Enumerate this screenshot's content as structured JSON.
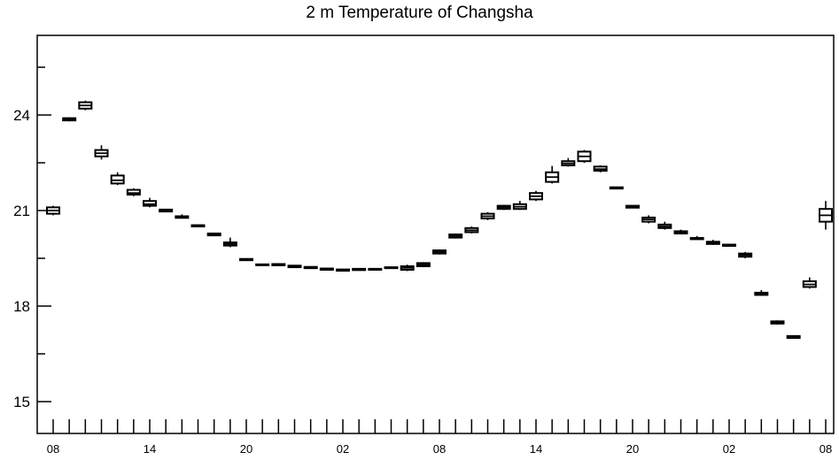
{
  "chart_data": {
    "type": "boxplot",
    "title": "2 m Temperature of Changsha",
    "xlabel": "",
    "ylabel": "",
    "x_range": [
      0,
      49
    ],
    "ylim": [
      14,
      26.5
    ],
    "y_ticks": [
      15,
      18,
      21,
      24
    ],
    "x_tick_labels": [
      {
        "x": 1,
        "label": "08"
      },
      {
        "x": 7,
        "label": "14"
      },
      {
        "x": 13,
        "label": "20"
      },
      {
        "x": 19,
        "label": "02"
      },
      {
        "x": 25,
        "label": "08"
      },
      {
        "x": 31,
        "label": "14"
      },
      {
        "x": 37,
        "label": "20"
      },
      {
        "x": 43,
        "label": "02"
      },
      {
        "x": 49,
        "label": "08"
      }
    ],
    "boxes": [
      {
        "x": 1,
        "min": 20.85,
        "q1": 20.9,
        "median": 21.0,
        "q3": 21.1,
        "max": 21.15
      },
      {
        "x": 2,
        "min": 23.8,
        "q1": 23.83,
        "median": 23.87,
        "q3": 23.9,
        "max": 23.93
      },
      {
        "x": 3,
        "min": 24.15,
        "q1": 24.2,
        "median": 24.3,
        "q3": 24.4,
        "max": 24.45
      },
      {
        "x": 4,
        "min": 22.6,
        "q1": 22.7,
        "median": 22.8,
        "q3": 22.9,
        "max": 23.05
      },
      {
        "x": 5,
        "min": 21.8,
        "q1": 21.85,
        "median": 21.95,
        "q3": 22.1,
        "max": 22.2
      },
      {
        "x": 6,
        "min": 21.45,
        "q1": 21.5,
        "median": 21.55,
        "q3": 21.65,
        "max": 21.7
      },
      {
        "x": 7,
        "min": 21.1,
        "q1": 21.15,
        "median": 21.2,
        "q3": 21.3,
        "max": 21.4
      },
      {
        "x": 8,
        "min": 20.95,
        "q1": 20.97,
        "median": 21.0,
        "q3": 21.03,
        "max": 21.05
      },
      {
        "x": 9,
        "min": 20.75,
        "q1": 20.77,
        "median": 20.8,
        "q3": 20.82,
        "max": 20.88
      },
      {
        "x": 10,
        "min": 20.48,
        "q1": 20.5,
        "median": 20.52,
        "q3": 20.54,
        "max": 20.56
      },
      {
        "x": 11,
        "min": 20.2,
        "q1": 20.22,
        "median": 20.25,
        "q3": 20.28,
        "max": 20.3
      },
      {
        "x": 12,
        "min": 19.85,
        "q1": 19.9,
        "median": 19.95,
        "q3": 20.0,
        "max": 20.15
      },
      {
        "x": 13,
        "min": 19.42,
        "q1": 19.44,
        "median": 19.46,
        "q3": 19.48,
        "max": 19.5
      },
      {
        "x": 14,
        "min": 19.27,
        "q1": 19.29,
        "median": 19.3,
        "q3": 19.31,
        "max": 19.33
      },
      {
        "x": 15,
        "min": 19.26,
        "q1": 19.28,
        "median": 19.3,
        "q3": 19.32,
        "max": 19.33
      },
      {
        "x": 16,
        "min": 19.2,
        "q1": 19.22,
        "median": 19.24,
        "q3": 19.27,
        "max": 19.29
      },
      {
        "x": 17,
        "min": 19.17,
        "q1": 19.19,
        "median": 19.21,
        "q3": 19.23,
        "max": 19.25
      },
      {
        "x": 18,
        "min": 19.12,
        "q1": 19.14,
        "median": 19.16,
        "q3": 19.18,
        "max": 19.2
      },
      {
        "x": 19,
        "min": 19.09,
        "q1": 19.11,
        "median": 19.13,
        "q3": 19.15,
        "max": 19.17
      },
      {
        "x": 20,
        "min": 19.11,
        "q1": 19.13,
        "median": 19.15,
        "q3": 19.17,
        "max": 19.19
      },
      {
        "x": 21,
        "min": 19.13,
        "q1": 19.14,
        "median": 19.16,
        "q3": 19.17,
        "max": 19.18
      },
      {
        "x": 22,
        "min": 19.18,
        "q1": 19.19,
        "median": 19.21,
        "q3": 19.22,
        "max": 19.24
      },
      {
        "x": 23,
        "min": 19.1,
        "q1": 19.14,
        "median": 19.2,
        "q3": 19.25,
        "max": 19.3
      },
      {
        "x": 24,
        "min": 19.22,
        "q1": 19.25,
        "median": 19.3,
        "q3": 19.35,
        "max": 19.38
      },
      {
        "x": 25,
        "min": 19.62,
        "q1": 19.65,
        "median": 19.7,
        "q3": 19.75,
        "max": 19.78
      },
      {
        "x": 26,
        "min": 20.12,
        "q1": 20.15,
        "median": 20.2,
        "q3": 20.25,
        "max": 20.28
      },
      {
        "x": 27,
        "min": 20.28,
        "q1": 20.32,
        "median": 20.38,
        "q3": 20.45,
        "max": 20.5
      },
      {
        "x": 28,
        "min": 20.7,
        "q1": 20.75,
        "median": 20.82,
        "q3": 20.9,
        "max": 20.95
      },
      {
        "x": 29,
        "min": 21.02,
        "q1": 21.05,
        "median": 21.1,
        "q3": 21.15,
        "max": 21.18
      },
      {
        "x": 30,
        "min": 21.02,
        "q1": 21.05,
        "median": 21.12,
        "q3": 21.2,
        "max": 21.3
      },
      {
        "x": 31,
        "min": 21.3,
        "q1": 21.35,
        "median": 21.45,
        "q3": 21.55,
        "max": 21.62
      },
      {
        "x": 32,
        "min": 21.85,
        "q1": 21.9,
        "median": 22.05,
        "q3": 22.2,
        "max": 22.4
      },
      {
        "x": 33,
        "min": 22.38,
        "q1": 22.42,
        "median": 22.48,
        "q3": 22.55,
        "max": 22.65
      },
      {
        "x": 34,
        "min": 22.5,
        "q1": 22.55,
        "median": 22.7,
        "q3": 22.85,
        "max": 22.9
      },
      {
        "x": 35,
        "min": 22.2,
        "q1": 22.25,
        "median": 22.3,
        "q3": 22.38,
        "max": 22.42
      },
      {
        "x": 36,
        "min": 21.67,
        "q1": 21.69,
        "median": 21.71,
        "q3": 21.73,
        "max": 21.75
      },
      {
        "x": 37,
        "min": 21.07,
        "q1": 21.09,
        "median": 21.12,
        "q3": 21.15,
        "max": 21.17
      },
      {
        "x": 38,
        "min": 20.6,
        "q1": 20.65,
        "median": 20.72,
        "q3": 20.78,
        "max": 20.85
      },
      {
        "x": 39,
        "min": 20.4,
        "q1": 20.45,
        "median": 20.5,
        "q3": 20.56,
        "max": 20.65
      },
      {
        "x": 40,
        "min": 20.25,
        "q1": 20.28,
        "median": 20.32,
        "q3": 20.35,
        "max": 20.4
      },
      {
        "x": 41,
        "min": 20.08,
        "q1": 20.1,
        "median": 20.12,
        "q3": 20.14,
        "max": 20.2
      },
      {
        "x": 42,
        "min": 19.92,
        "q1": 19.95,
        "median": 19.98,
        "q3": 20.02,
        "max": 20.08
      },
      {
        "x": 43,
        "min": 19.87,
        "q1": 19.89,
        "median": 19.91,
        "q3": 19.93,
        "max": 19.95
      },
      {
        "x": 44,
        "min": 19.5,
        "q1": 19.55,
        "median": 19.6,
        "q3": 19.65,
        "max": 19.7
      },
      {
        "x": 45,
        "min": 18.32,
        "q1": 18.35,
        "median": 18.38,
        "q3": 18.42,
        "max": 18.5
      },
      {
        "x": 46,
        "min": 17.42,
        "q1": 17.45,
        "median": 17.48,
        "q3": 17.52,
        "max": 17.55
      },
      {
        "x": 47,
        "min": 16.97,
        "q1": 17.0,
        "median": 17.03,
        "q3": 17.06,
        "max": 17.08
      },
      {
        "x": 48,
        "min": 18.55,
        "q1": 18.6,
        "median": 18.68,
        "q3": 18.78,
        "max": 18.9
      },
      {
        "x": 49,
        "min": 20.4,
        "q1": 20.65,
        "median": 20.85,
        "q3": 21.05,
        "max": 21.3
      }
    ]
  }
}
